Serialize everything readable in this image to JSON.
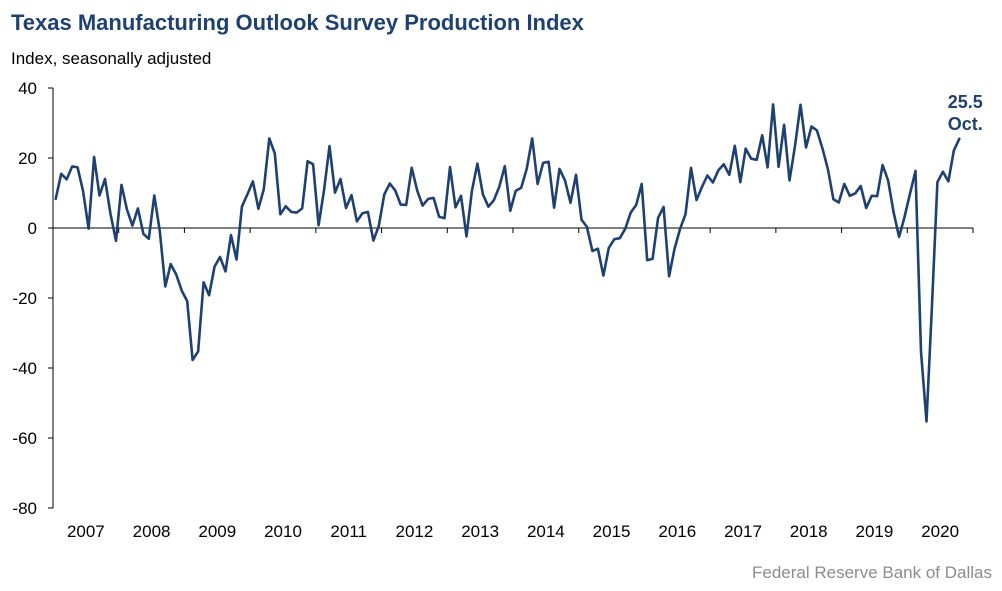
{
  "title": "Texas Manufacturing Outlook Survey Production Index",
  "subtitle": "Index, seasonally adjusted",
  "source": "Federal Reserve Bank of Dallas",
  "colors": {
    "line": "#1f4172",
    "title": "#1f4172",
    "source": "#8c8c8c"
  },
  "chart_data": {
    "type": "line",
    "title": "Texas Manufacturing Outlook Survey Production Index",
    "ylabel": "Index, seasonally adjusted",
    "xlabel": "",
    "ylim": [
      -80,
      40
    ],
    "yticks": [
      40,
      20,
      0,
      -20,
      -40,
      -60,
      -80
    ],
    "x_start": "2007-01",
    "x_end": "2020-10",
    "x_tick_labels": [
      "2007",
      "2008",
      "2009",
      "2010",
      "2011",
      "2012",
      "2013",
      "2014",
      "2015",
      "2016",
      "2017",
      "2018",
      "2019",
      "2020"
    ],
    "grid": false,
    "legend": "none",
    "annotation": {
      "value": "25.5",
      "label": "Oct."
    },
    "series": [
      {
        "values": [
          8.3,
          15.5,
          13.9,
          17.6,
          17.3,
          10.5,
          -0.2,
          20.3,
          9.3,
          14.0,
          4.0,
          -3.7,
          12.3,
          5.3,
          0.7,
          5.6,
          -1.7,
          -3.1,
          9.3,
          -0.9,
          -16.7,
          -10.3,
          -13.3,
          -17.9,
          -20.9,
          -37.7,
          -35.3,
          -15.5,
          -19.2,
          -11.1,
          -8.3,
          -12.4,
          -2.0,
          -9.0,
          6.1,
          9.6,
          13.3,
          5.5,
          11.1,
          25.6,
          21.3,
          3.9,
          6.2,
          4.6,
          4.4,
          5.6,
          19.1,
          18.2,
          0.8,
          10.9,
          23.4,
          10.1,
          14.0,
          5.7,
          9.4,
          1.9,
          4.2,
          4.6,
          -3.6,
          0.6,
          9.6,
          12.7,
          10.7,
          6.7,
          6.6,
          17.2,
          10.7,
          6.4,
          8.3,
          8.6,
          3.2,
          2.8,
          17.4,
          5.9,
          9.2,
          -2.4,
          10.6,
          18.4,
          9.6,
          6.1,
          7.9,
          11.8,
          17.7,
          4.9,
          10.6,
          11.5,
          16.9,
          25.6,
          12.6,
          18.6,
          18.9,
          5.8,
          16.9,
          13.6,
          7.2,
          15.2,
          2.4,
          0.3,
          -6.6,
          -5.9,
          -13.6,
          -5.7,
          -3.2,
          -2.9,
          -0.2,
          4.4,
          6.6,
          12.6,
          -9.2,
          -8.8,
          2.9,
          6.0,
          -13.8,
          -6.0,
          -0.3,
          3.9,
          17.2,
          8.0,
          11.7,
          15.0,
          13.0,
          16.5,
          18.2,
          15.2,
          23.5,
          13.1,
          22.7,
          19.8,
          19.5,
          26.5,
          17.3,
          35.3,
          17.5,
          29.5,
          13.6,
          23.4,
          35.2,
          23.0,
          29.0,
          27.9,
          22.8,
          16.8,
          8.2,
          7.3,
          12.6,
          9.2,
          9.9,
          12.0,
          5.7,
          9.2,
          9.1,
          18.0,
          13.6,
          4.5,
          -2.5,
          3.1,
          9.8,
          16.3,
          -35.3,
          -55.3,
          -22.6,
          13.1,
          16.1,
          13.3,
          22.1,
          25.5
        ]
      }
    ]
  }
}
